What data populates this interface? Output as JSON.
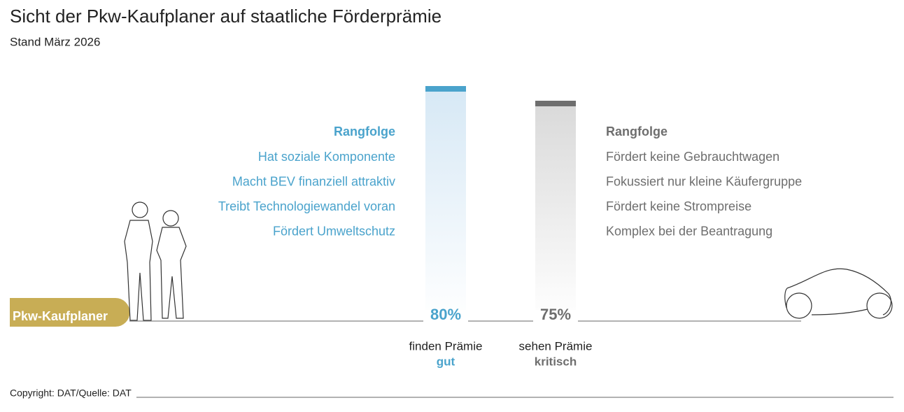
{
  "chart_data": {
    "type": "bar",
    "title": "Sicht der Pkw-Kaufplaner auf staatliche Förderprämie",
    "subtitle": "Stand März 2026",
    "categories": [
      "finden Prämie",
      "sehen Prämie"
    ],
    "category_verdicts": [
      "gut",
      "kritisch"
    ],
    "values": [
      80,
      75
    ],
    "value_labels": [
      "80%",
      "75%"
    ],
    "colors": [
      "#4aa3cc",
      "#6e6e6e"
    ],
    "ylim": [
      0,
      100
    ]
  },
  "group_label": "Pkw-Kaufplaner",
  "rankings": [
    {
      "heading": "Rangfolge",
      "color": "#4aa3cc",
      "items": [
        "Hat soziale Komponente",
        "Macht BEV finanziell attraktiv",
        "Treibt Technologiewandel voran",
        "Fördert Umweltschutz"
      ]
    },
    {
      "heading": "Rangfolge",
      "color": "#6e6e6e",
      "items": [
        "Fördert keine Gebrauchtwagen",
        "Fokussiert nur kleine Käufergruppe",
        "Fördert keine Strompreise",
        "Komplex bei der Beantragung"
      ]
    }
  ],
  "copyright": "Copyright: DAT/Quelle: DAT"
}
